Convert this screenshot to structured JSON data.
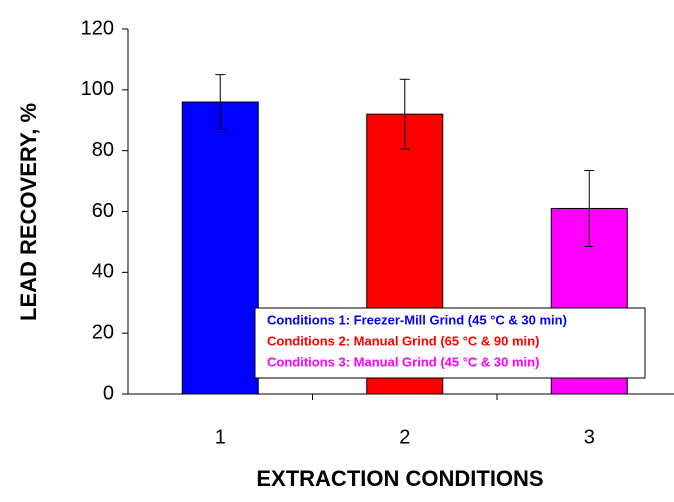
{
  "chart_data": {
    "type": "bar",
    "x_label": "EXTRACTION CONDITIONS",
    "y_label": "LEAD RECOVERY, %",
    "categories": [
      "1",
      "2",
      "3"
    ],
    "values": [
      96,
      92,
      61
    ],
    "errors": [
      9,
      11.5,
      12.5
    ],
    "colors": [
      "#0000ff",
      "#ff0000",
      "#ff00ff"
    ],
    "ylim": [
      0,
      120
    ],
    "yticks": [
      0,
      20,
      40,
      60,
      80,
      100,
      120
    ],
    "grid": false,
    "legend": [
      {
        "text": "Conditions 1: Freezer-Mill Grind (45 °C & 30 min)",
        "color": "#0000ff"
      },
      {
        "text": "Conditions 2: Manual Grind (65 °C & 90 min)",
        "color": "#ff0000"
      },
      {
        "text": "Conditions 3: Manual Grind (45 °C & 30 min)",
        "color": "#ff00ff"
      }
    ]
  }
}
